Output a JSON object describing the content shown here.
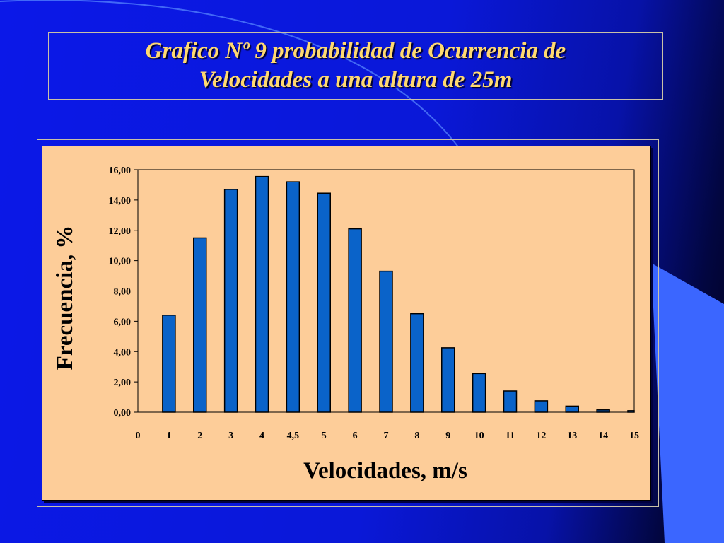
{
  "slide": {
    "title_line1": "Grafico Nº 9 probabilidad de Ocurrencia de",
    "title_line2": "Velocidades a una altura de 25m"
  },
  "colors": {
    "background": "#0b18e8",
    "title_text": "#ffd970",
    "panel": "#fdcd99",
    "bar_fill": "#0a63c9",
    "light_shape": "#3b66ff"
  },
  "chart_data": {
    "type": "bar",
    "title": "",
    "xlabel": "Velocidades, m/s",
    "ylabel": "Frecuencia, %",
    "categories": [
      "0",
      "1",
      "2",
      "3",
      "4",
      "4,5",
      "5",
      "6",
      "7",
      "8",
      "9",
      "10",
      "11",
      "12",
      "13",
      "14",
      "15"
    ],
    "values": [
      0,
      6.4,
      11.5,
      14.7,
      15.55,
      15.2,
      14.45,
      12.1,
      9.3,
      6.5,
      4.25,
      2.55,
      1.4,
      0.75,
      0.4,
      0.15,
      0.1
    ],
    "ylim": [
      0,
      16
    ],
    "yticks": [
      "0,00",
      "2,00",
      "4,00",
      "6,00",
      "8,00",
      "10,00",
      "12,00",
      "14,00",
      "16,00"
    ],
    "grid": false,
    "legend": "none"
  }
}
